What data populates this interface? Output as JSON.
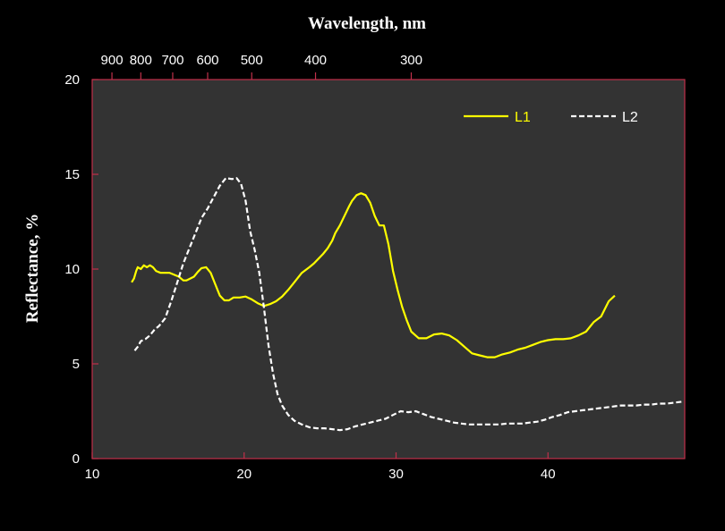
{
  "chart_data": {
    "type": "line",
    "top_xlabel": "Wavelength, nm",
    "ylabel": "Reflectance, %",
    "xlabel": "",
    "xlim": [
      10,
      49
    ],
    "ylim": [
      0,
      20
    ],
    "bottom_ticks": [
      10,
      20,
      30,
      40
    ],
    "bottom_tick_labels": [
      "10",
      "20",
      "30",
      "40"
    ],
    "y_ticks": [
      0,
      5,
      10,
      15,
      20
    ],
    "y_tick_labels": [
      "0",
      "5",
      "10",
      "15",
      "20"
    ],
    "top_ticks": [
      {
        "label": "900",
        "x": 11.3
      },
      {
        "label": "800",
        "x": 13.2
      },
      {
        "label": "700",
        "x": 15.3
      },
      {
        "label": "600",
        "x": 17.6
      },
      {
        "label": "500",
        "x": 20.5
      },
      {
        "label": "400",
        "x": 24.7
      },
      {
        "label": "300",
        "x": 31.0
      }
    ],
    "legend_position": "top-right",
    "grid": false,
    "plot_background": "#333333",
    "frame_color": "#c0304a",
    "series": [
      {
        "name": "L1",
        "color": "#ffff00",
        "style": "solid",
        "x": [
          12.6,
          12.75,
          12.9,
          13.0,
          13.2,
          13.4,
          13.6,
          13.8,
          14.0,
          14.2,
          14.5,
          14.8,
          15.1,
          15.4,
          15.7,
          16.0,
          16.2,
          16.45,
          16.7,
          16.95,
          17.2,
          17.5,
          17.8,
          18.1,
          18.4,
          18.7,
          19.0,
          19.3,
          19.7,
          20.1,
          20.5,
          20.9,
          21.3,
          21.7,
          22.1,
          22.5,
          22.9,
          23.3,
          23.8,
          24.3,
          24.6,
          24.9,
          25.2,
          25.5,
          25.8,
          26.0,
          26.3,
          26.6,
          26.9,
          27.1,
          27.4,
          27.7,
          28.0,
          28.3,
          28.6,
          28.9,
          29.2,
          29.5,
          29.8,
          30.1,
          30.4,
          30.7,
          31.0,
          31.5,
          32.0,
          32.5,
          33.0,
          33.5,
          34.0,
          34.5,
          35.0,
          35.5,
          36.0,
          36.5,
          37.0,
          37.5,
          38.0,
          38.5,
          39.0,
          39.5,
          40.0,
          40.5,
          41.0,
          41.5,
          42.0,
          42.5,
          43.0,
          43.5,
          44.0,
          44.4
        ],
        "y": [
          9.3,
          9.5,
          9.9,
          10.1,
          10.0,
          10.2,
          10.1,
          10.2,
          10.1,
          9.9,
          9.8,
          9.8,
          9.8,
          9.7,
          9.6,
          9.4,
          9.4,
          9.5,
          9.6,
          9.85,
          10.05,
          10.1,
          9.8,
          9.2,
          8.6,
          8.35,
          8.35,
          8.5,
          8.5,
          8.55,
          8.4,
          8.2,
          8.05,
          8.15,
          8.3,
          8.55,
          8.9,
          9.3,
          9.8,
          10.1,
          10.3,
          10.55,
          10.8,
          11.1,
          11.5,
          11.9,
          12.3,
          12.8,
          13.3,
          13.6,
          13.9,
          14.0,
          13.9,
          13.5,
          12.8,
          12.3,
          12.3,
          11.3,
          9.9,
          8.9,
          8.0,
          7.3,
          6.7,
          6.35,
          6.35,
          6.55,
          6.6,
          6.5,
          6.25,
          5.9,
          5.55,
          5.45,
          5.35,
          5.35,
          5.5,
          5.6,
          5.75,
          5.85,
          6.0,
          6.15,
          6.25,
          6.3,
          6.3,
          6.35,
          6.5,
          6.7,
          7.2,
          7.5,
          8.3,
          8.6
        ]
      },
      {
        "name": "L2",
        "color": "#ffffff",
        "style": "dashed",
        "x": [
          12.8,
          13.0,
          13.2,
          13.5,
          13.8,
          14.1,
          14.4,
          14.8,
          15.2,
          15.6,
          16.0,
          16.4,
          16.8,
          17.2,
          17.6,
          18.0,
          18.4,
          18.8,
          19.2,
          19.5,
          19.8,
          20.1,
          20.4,
          20.7,
          21.0,
          21.3,
          21.6,
          21.9,
          22.2,
          22.5,
          22.9,
          23.3,
          23.8,
          24.3,
          24.8,
          25.3,
          25.8,
          26.3,
          26.8,
          27.3,
          27.8,
          28.3,
          28.8,
          29.3,
          29.8,
          30.3,
          30.8,
          31.3,
          31.8,
          32.3,
          32.8,
          33.3,
          33.8,
          34.3,
          34.8,
          35.3,
          35.8,
          36.3,
          36.8,
          37.3,
          37.8,
          38.3,
          38.8,
          39.3,
          39.8,
          40.3,
          40.8,
          41.3,
          41.8,
          42.3,
          42.8,
          43.3,
          43.8,
          44.3,
          44.8,
          45.3,
          45.8,
          46.3,
          46.8,
          47.3,
          47.8,
          48.3,
          48.8
        ],
        "y": [
          5.7,
          5.9,
          6.2,
          6.3,
          6.5,
          6.8,
          7.0,
          7.4,
          8.3,
          9.3,
          10.3,
          11.1,
          11.9,
          12.7,
          13.2,
          13.8,
          14.4,
          14.8,
          14.75,
          14.8,
          14.5,
          13.6,
          12.0,
          11.0,
          9.8,
          8.0,
          6.0,
          4.5,
          3.4,
          2.8,
          2.3,
          2.0,
          1.8,
          1.65,
          1.6,
          1.6,
          1.55,
          1.5,
          1.55,
          1.7,
          1.8,
          1.9,
          2.0,
          2.1,
          2.3,
          2.5,
          2.45,
          2.5,
          2.35,
          2.2,
          2.1,
          2.0,
          1.9,
          1.85,
          1.8,
          1.8,
          1.8,
          1.8,
          1.8,
          1.85,
          1.85,
          1.85,
          1.9,
          1.95,
          2.05,
          2.2,
          2.3,
          2.45,
          2.5,
          2.55,
          2.6,
          2.65,
          2.7,
          2.75,
          2.8,
          2.8,
          2.8,
          2.85,
          2.85,
          2.9,
          2.9,
          2.95,
          3.0
        ]
      }
    ]
  }
}
